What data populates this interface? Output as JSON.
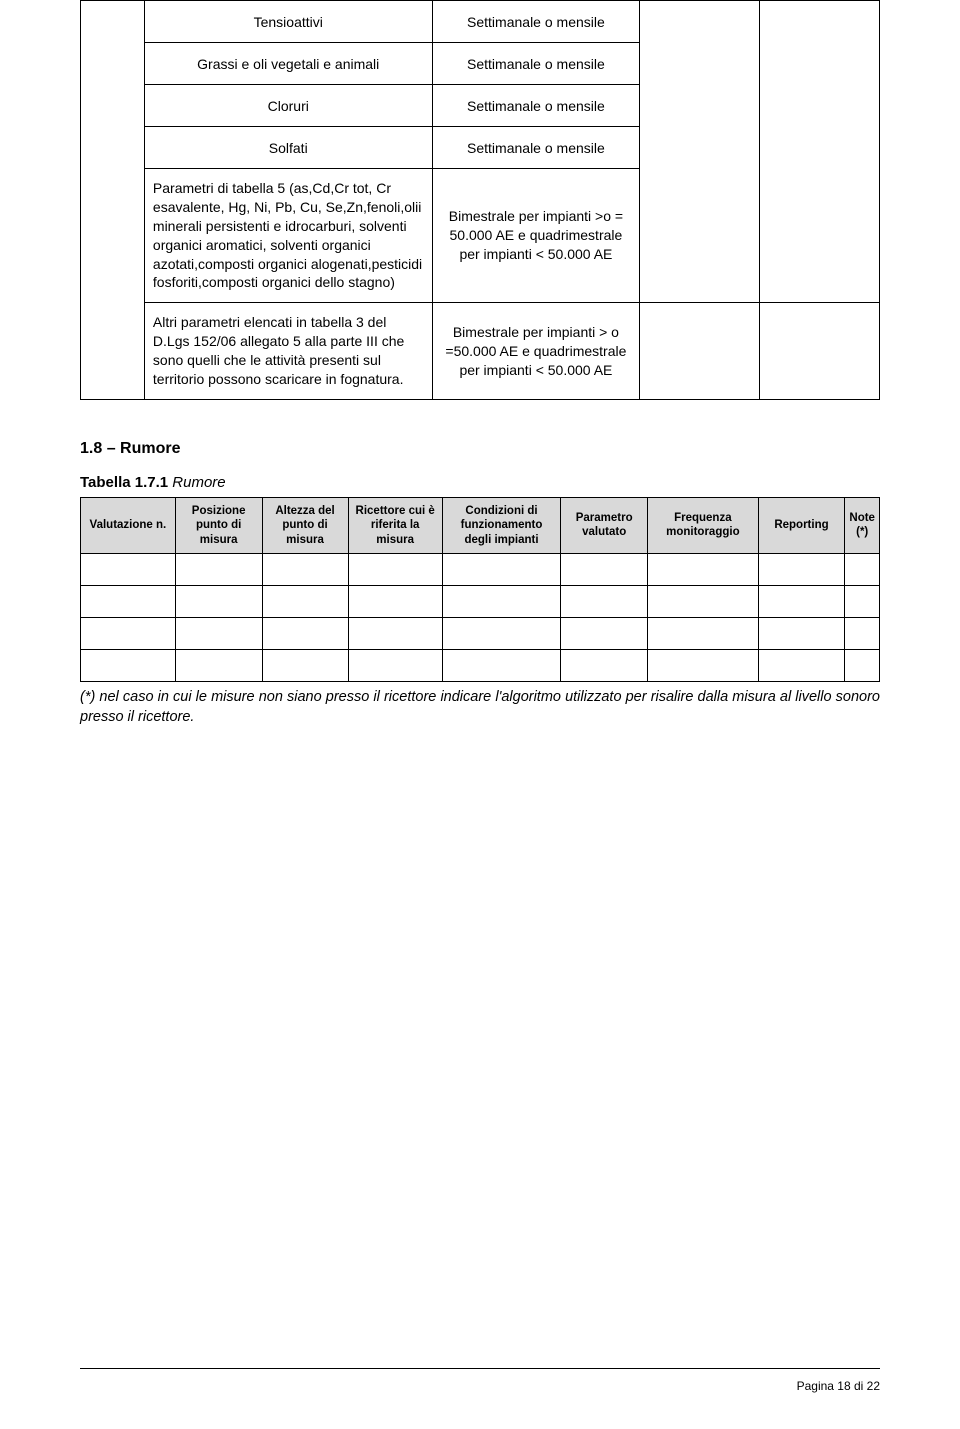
{
  "main_table": {
    "rows_simple": [
      {
        "param": "Tensioattivi",
        "freq": "Settimanale o mensile"
      },
      {
        "param": "Grassi e oli vegetali e animali",
        "freq": "Settimanale o mensile"
      },
      {
        "param": "Cloruri",
        "freq": "Settimanale o mensile"
      },
      {
        "param": "Solfati",
        "freq": "Settimanale o mensile"
      }
    ],
    "row_complex_1": {
      "param": "Parametri di tabella 5 (as,Cd,Cr tot, Cr esavalente, Hg, Ni, Pb, Cu, Se,Zn,fenoli,olii minerali persistenti e idrocarburi, solventi organici aromatici, solventi organici azotati,composti organici alogenati,pesticidi fosforiti,composti organici dello stagno)",
      "freq": "Bimestrale per impianti >o = 50.000 AE e quadrimestrale per impianti < 50.000 AE"
    },
    "row_complex_2": {
      "param": "Altri parametri elencati in tabella 3 del D.Lgs 152/06 allegato 5 alla parte III che sono quelli che le attività presenti sul territorio possono scaricare in fognatura.",
      "freq": "Bimestrale per impianti > o =50.000 AE e quadrimestrale per impianti < 50.000 AE"
    }
  },
  "section_1_8": {
    "heading": "1.8 – Rumore",
    "subheading_bold": "Tabella 1.7.1 ",
    "subheading_italic": "Rumore",
    "columns": [
      "Valutazione n.",
      "Posizione punto di misura",
      "Altezza del punto di misura",
      "Ricettore cui è riferita la misura",
      "Condizioni di funzionamento degli impianti",
      "Parametro valutato",
      "Frequenza monitoraggio",
      "Reporting",
      "Note (*)"
    ],
    "footnote": "(*) nel caso in cui le misure non siano presso il ricettore indicare l'algoritmo utilizzato per risalire dalla misura al livello sonoro presso il ricettore."
  },
  "footer": "Pagina 18 di 22",
  "colors": {
    "header_bg": "#d9d9d9",
    "border": "#000000",
    "text": "#000000",
    "page_bg": "#ffffff"
  }
}
